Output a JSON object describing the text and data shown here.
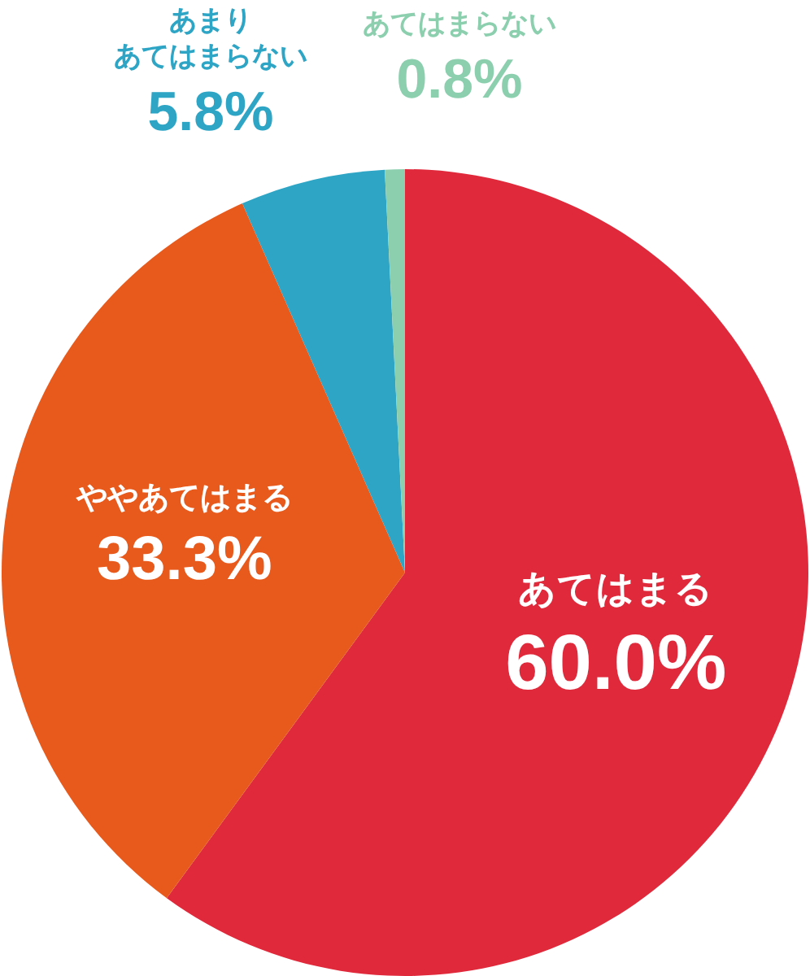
{
  "chart_data": {
    "type": "pie",
    "categories": [
      "あてはまる",
      "ややあてはまる",
      "あまりあてはまらない",
      "あてはまらない"
    ],
    "values": [
      60.0,
      33.3,
      5.8,
      0.8
    ],
    "value_labels": [
      "60.0%",
      "33.3%",
      "5.8%",
      "0.8%"
    ],
    "colors": [
      "#e0293b",
      "#e8591c",
      "#2fa5c6",
      "#8ccfae"
    ]
  }
}
